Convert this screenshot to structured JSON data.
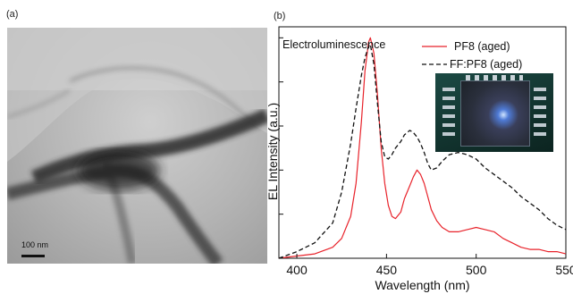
{
  "panel_a": {
    "label": "(a)",
    "scale_bar": "100 nm"
  },
  "panel_b": {
    "label": "(b)"
  },
  "chart_data": {
    "type": "line",
    "annotation": "Electroluminescence",
    "xlabel": "Wavelength (nm)",
    "ylabel": "EL Intensity (a.u.)",
    "xlim": [
      390,
      550
    ],
    "ylim": [
      0,
      1.05
    ],
    "x_ticks": [
      400,
      450,
      500,
      550
    ],
    "y_ticks": [
      0,
      0.2,
      0.4,
      0.6,
      0.8,
      1.0
    ],
    "show_y_tick_labels": false,
    "legend_position": "top-right",
    "inset_image": "photo of blue-emitting device",
    "series": [
      {
        "name": "PF8 (aged)",
        "color": "#e8222a",
        "style": "solid",
        "x": [
          390,
          400,
          410,
          420,
          425,
          430,
          433,
          436,
          438,
          440,
          441,
          443,
          445,
          447,
          449,
          451,
          453,
          455,
          458,
          460,
          463,
          465,
          467,
          469,
          471,
          473,
          475,
          478,
          481,
          485,
          490,
          495,
          500,
          505,
          510,
          515,
          520,
          525,
          530,
          535,
          540,
          545,
          550
        ],
        "y": [
          0.0,
          0.01,
          0.02,
          0.05,
          0.09,
          0.19,
          0.34,
          0.62,
          0.85,
          0.98,
          1.0,
          0.93,
          0.74,
          0.5,
          0.34,
          0.24,
          0.19,
          0.18,
          0.21,
          0.27,
          0.33,
          0.37,
          0.4,
          0.38,
          0.34,
          0.28,
          0.22,
          0.17,
          0.14,
          0.12,
          0.12,
          0.13,
          0.14,
          0.13,
          0.12,
          0.09,
          0.07,
          0.05,
          0.04,
          0.04,
          0.03,
          0.03,
          0.02
        ]
      },
      {
        "name": "FF:PF8 (aged)",
        "color": "#111111",
        "style": "dashed",
        "x": [
          390,
          400,
          410,
          420,
          425,
          430,
          433,
          436,
          438,
          440,
          441,
          443,
          445,
          447,
          449,
          451,
          453,
          455,
          458,
          460,
          463,
          465,
          467,
          469,
          471,
          473,
          475,
          478,
          481,
          485,
          490,
          495,
          500,
          505,
          510,
          515,
          520,
          525,
          530,
          535,
          540,
          545,
          550
        ],
        "y": [
          0.0,
          0.03,
          0.07,
          0.16,
          0.3,
          0.52,
          0.68,
          0.83,
          0.91,
          0.96,
          0.97,
          0.88,
          0.7,
          0.53,
          0.46,
          0.45,
          0.47,
          0.5,
          0.53,
          0.56,
          0.58,
          0.57,
          0.55,
          0.52,
          0.48,
          0.43,
          0.4,
          0.41,
          0.44,
          0.47,
          0.48,
          0.47,
          0.45,
          0.41,
          0.38,
          0.35,
          0.32,
          0.28,
          0.25,
          0.22,
          0.18,
          0.15,
          0.13
        ]
      }
    ]
  }
}
